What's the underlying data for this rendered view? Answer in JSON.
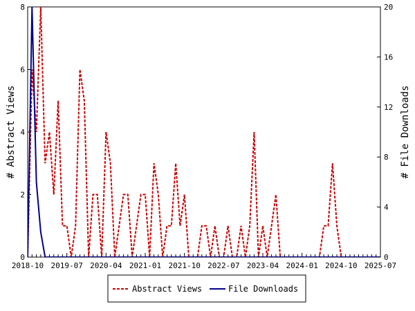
{
  "chart_data": {
    "type": "line",
    "ylabel_left": "# Abstract Views",
    "ylabel_right": "# File Downloads",
    "x_tick_labels": [
      "2018-10",
      "2019-07",
      "2020-04",
      "2021-01",
      "2021-10",
      "2022-07",
      "2023-04",
      "2024-01",
      "2024-10",
      "2025-07"
    ],
    "ylim_left": [
      0,
      8
    ],
    "ylim_right": [
      0,
      20
    ],
    "y_ticks_left": [
      "0",
      "2",
      "4",
      "6",
      "8"
    ],
    "y_ticks_right": [
      "0",
      "4",
      "8",
      "12",
      "16",
      "20"
    ],
    "legend_position": "bottom-center",
    "series": [
      {
        "name": "Abstract Views",
        "axis": "left",
        "color": "#cc0000",
        "style": "dashed",
        "points": [
          [
            "2018-10",
            0
          ],
          [
            "2018-11",
            6
          ],
          [
            "2018-12",
            4
          ],
          [
            "2019-01",
            8
          ],
          [
            "2019-02",
            3
          ],
          [
            "2019-03",
            4
          ],
          [
            "2019-04",
            2
          ],
          [
            "2019-05",
            5
          ],
          [
            "2019-06",
            1
          ],
          [
            "2019-07",
            1
          ],
          [
            "2019-08",
            0
          ],
          [
            "2019-09",
            1
          ],
          [
            "2019-10",
            6
          ],
          [
            "2019-11",
            5
          ],
          [
            "2019-12",
            0
          ],
          [
            "2020-01",
            2
          ],
          [
            "2020-02",
            2
          ],
          [
            "2020-03",
            0
          ],
          [
            "2020-04",
            4
          ],
          [
            "2020-05",
            3
          ],
          [
            "2020-06",
            0
          ],
          [
            "2020-07",
            1
          ],
          [
            "2020-08",
            2
          ],
          [
            "2020-09",
            2
          ],
          [
            "2020-10",
            0
          ],
          [
            "2020-11",
            1
          ],
          [
            "2020-12",
            2
          ],
          [
            "2021-01",
            2
          ],
          [
            "2021-02",
            0
          ],
          [
            "2021-03",
            3
          ],
          [
            "2021-04",
            2
          ],
          [
            "2021-05",
            0
          ],
          [
            "2021-06",
            1
          ],
          [
            "2021-07",
            1
          ],
          [
            "2021-08",
            3
          ],
          [
            "2021-09",
            1
          ],
          [
            "2021-10",
            2
          ],
          [
            "2021-11",
            0
          ],
          [
            "2021-12",
            0
          ],
          [
            "2022-01",
            0
          ],
          [
            "2022-02",
            1
          ],
          [
            "2022-03",
            1
          ],
          [
            "2022-04",
            0
          ],
          [
            "2022-05",
            1
          ],
          [
            "2022-06",
            0
          ],
          [
            "2022-07",
            0
          ],
          [
            "2022-08",
            1
          ],
          [
            "2022-09",
            0
          ],
          [
            "2022-10",
            0
          ],
          [
            "2022-11",
            1
          ],
          [
            "2022-12",
            0
          ],
          [
            "2023-01",
            1
          ],
          [
            "2023-02",
            4
          ],
          [
            "2023-03",
            0
          ],
          [
            "2023-04",
            1
          ],
          [
            "2023-05",
            0
          ],
          [
            "2023-06",
            1
          ],
          [
            "2023-07",
            2
          ],
          [
            "2023-08",
            0
          ],
          [
            "2023-09",
            0
          ],
          [
            "2023-10",
            0
          ],
          [
            "2023-11",
            0
          ],
          [
            "2023-12",
            0
          ],
          [
            "2024-01",
            0
          ],
          [
            "2024-02",
            0
          ],
          [
            "2024-03",
            0
          ],
          [
            "2024-04",
            0
          ],
          [
            "2024-05",
            0
          ],
          [
            "2024-06",
            1
          ],
          [
            "2024-07",
            1
          ],
          [
            "2024-08",
            3
          ],
          [
            "2024-09",
            1
          ],
          [
            "2024-10",
            0
          ],
          [
            "2024-11",
            0
          ],
          [
            "2024-12",
            0
          ],
          [
            "2025-01",
            0
          ],
          [
            "2025-02",
            0
          ],
          [
            "2025-03",
            0
          ],
          [
            "2025-04",
            0
          ],
          [
            "2025-05",
            0
          ],
          [
            "2025-06",
            0
          ],
          [
            "2025-07",
            0
          ],
          [
            "2025-08",
            0
          ]
        ]
      },
      {
        "name": "File Downloads",
        "axis": "right",
        "color": "#00008b",
        "style": "solid",
        "points": [
          [
            "2018-10",
            0
          ],
          [
            "2018-11",
            20
          ],
          [
            "2018-12",
            6
          ],
          [
            "2019-01",
            2
          ],
          [
            "2019-02",
            0
          ],
          [
            "2019-03",
            0
          ],
          [
            "2019-07",
            0
          ],
          [
            "2020-04",
            0
          ],
          [
            "2021-01",
            0
          ],
          [
            "2021-10",
            0
          ],
          [
            "2022-07",
            0
          ],
          [
            "2023-04",
            0
          ],
          [
            "2024-01",
            0
          ],
          [
            "2024-10",
            0
          ],
          [
            "2025-07",
            0
          ],
          [
            "2025-08",
            0
          ]
        ]
      }
    ]
  }
}
